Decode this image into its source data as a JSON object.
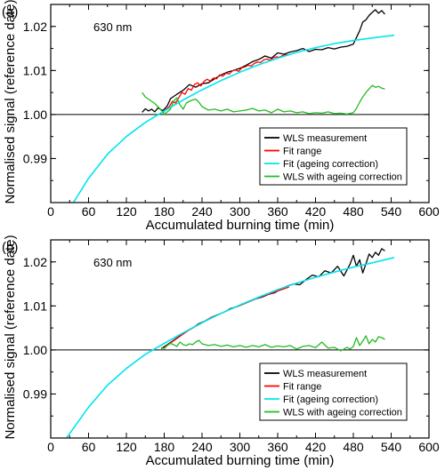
{
  "colors": {
    "measurement": "#000000",
    "fit_range": "#ff0000",
    "fit": "#00e5ee",
    "corrected": "#22bb22",
    "reference": "#000000"
  },
  "chart_data": [
    {
      "type": "line",
      "panel_label": "(a)",
      "annotation": "630 nm",
      "xlabel": "Accumulated burning time (min)",
      "ylabel": "Normalised signal (reference date)",
      "xlim": [
        0,
        600
      ],
      "ylim": [
        0.98,
        1.025
      ],
      "x_ticks": [
        0,
        60,
        120,
        180,
        240,
        300,
        360,
        420,
        480,
        540,
        600
      ],
      "y_ticks": [
        0.99,
        1.0,
        1.01,
        1.02
      ],
      "y_tick_labels": [
        "0.99",
        "1.00",
        "1.01",
        "1.02"
      ],
      "reference_line": 1.0,
      "legend_position": "bottom-right",
      "series": [
        {
          "name": "WLS measurement",
          "color_key": "measurement",
          "x": [
            145,
            150,
            155,
            160,
            165,
            170,
            175,
            178,
            182,
            185,
            190,
            200,
            210,
            220,
            230,
            240,
            250,
            260,
            270,
            280,
            290,
            300,
            310,
            320,
            330,
            340,
            350,
            360,
            370,
            380,
            390,
            400,
            410,
            420,
            430,
            440,
            450,
            460,
            470,
            480,
            485,
            490,
            495,
            500,
            505,
            510,
            515,
            520,
            525,
            530
          ],
          "y": [
            1.0005,
            1.0013,
            1.0008,
            1.0012,
            1.0006,
            1.0015,
            1.0011,
            1.0009,
            1.0015,
            1.002,
            1.0036,
            1.0046,
            1.0055,
            1.0068,
            1.0062,
            1.007,
            1.0072,
            1.0081,
            1.009,
            1.0096,
            1.01,
            1.0105,
            1.0112,
            1.012,
            1.0125,
            1.0133,
            1.0128,
            1.014,
            1.0137,
            1.0142,
            1.0145,
            1.015,
            1.0143,
            1.0148,
            1.0147,
            1.0152,
            1.0149,
            1.0153,
            1.0155,
            1.016,
            1.0175,
            1.019,
            1.021,
            1.0215,
            1.0225,
            1.0232,
            1.0238,
            1.023,
            1.0236,
            1.0228
          ]
        },
        {
          "name": "Fit range",
          "color_key": "fit_range",
          "x": [
            178,
            183,
            188,
            193,
            198,
            203,
            208,
            213,
            218,
            223,
            228,
            233,
            238,
            243,
            248,
            253,
            258,
            263,
            268,
            273,
            278,
            283,
            288,
            293,
            298,
            303,
            308,
            313,
            318,
            323,
            328,
            333,
            338,
            343,
            348,
            353,
            358,
            363,
            368,
            373,
            378
          ],
          "y": [
            1.0003,
            1.0012,
            1.0018,
            1.003,
            1.0026,
            1.0038,
            1.005,
            1.0046,
            1.0059,
            1.0055,
            1.0068,
            1.0072,
            1.0065,
            1.0075,
            1.008,
            1.0076,
            1.0083,
            1.0081,
            1.009,
            1.0087,
            1.0094,
            1.0092,
            1.0099,
            1.0101,
            1.0098,
            1.0106,
            1.0108,
            1.0112,
            1.011,
            1.0116,
            1.0119,
            1.0118,
            1.0124,
            1.0126,
            1.0123,
            1.0129,
            1.0131,
            1.013,
            1.0134,
            1.0136,
            1.0135
          ]
        },
        {
          "name": "Fit (ageing correction)",
          "color_key": "fit",
          "x": [
            36,
            60,
            90,
            120,
            150,
            180,
            210,
            240,
            270,
            300,
            330,
            360,
            390,
            420,
            450,
            480,
            510,
            545
          ],
          "y": [
            0.98,
            0.9855,
            0.991,
            0.995,
            0.9982,
            1.0008,
            1.0033,
            1.0056,
            1.0077,
            1.0096,
            1.0113,
            1.0128,
            1.0141,
            1.0152,
            1.0161,
            1.0168,
            1.0174,
            1.018
          ]
        },
        {
          "name": "WLS with ageing correction",
          "color_key": "corrected",
          "x": [
            145,
            150,
            155,
            160,
            165,
            170,
            175,
            180,
            185,
            190,
            195,
            200,
            205,
            210,
            215,
            220,
            225,
            230,
            235,
            240,
            250,
            260,
            270,
            280,
            290,
            300,
            310,
            320,
            330,
            340,
            350,
            360,
            370,
            380,
            390,
            400,
            410,
            420,
            430,
            440,
            450,
            460,
            470,
            480,
            485,
            490,
            495,
            500,
            505,
            510,
            515,
            520,
            525,
            530
          ],
          "y": [
            1.005,
            1.004,
            1.0035,
            1.003,
            1.0025,
            1.0018,
            1.001,
            1.0,
            1.0006,
            1.0012,
            1.003,
            1.0038,
            1.0022,
            1.0012,
            1.0026,
            1.003,
            1.0033,
            1.0035,
            1.0028,
            1.0018,
            1.001,
            1.0012,
            1.0008,
            1.0012,
            1.0006,
            1.0008,
            1.001,
            1.0014,
            1.0008,
            1.001,
            1.0004,
            1.0012,
            1.0006,
            1.0008,
            1.0004,
            1.0006,
            1.0002,
            1.0004,
            1.0003,
            1.0006,
            1.0002,
            1.0003,
            1.0001,
            1.0004,
            1.0014,
            1.0028,
            1.004,
            1.005,
            1.0058,
            1.0066,
            1.0062,
            1.0064,
            1.006,
            1.0058
          ]
        }
      ]
    },
    {
      "type": "line",
      "panel_label": "(b)",
      "annotation": "630 nm",
      "xlabel": "Accumulated burning time (min)",
      "ylabel": "Normalised signal (reference date)",
      "xlim": [
        0,
        600
      ],
      "ylim": [
        0.98,
        1.025
      ],
      "x_ticks": [
        0,
        60,
        120,
        180,
        240,
        300,
        360,
        420,
        480,
        540,
        600
      ],
      "y_ticks": [
        0.99,
        1.0,
        1.01,
        1.02
      ],
      "y_tick_labels": [
        "0.99",
        "1.00",
        "1.01",
        "1.02"
      ],
      "reference_line": 1.0,
      "legend_position": "bottom-right",
      "series": [
        {
          "name": "WLS measurement",
          "color_key": "measurement",
          "x": [
            175,
            185,
            195,
            205,
            215,
            225,
            235,
            245,
            255,
            265,
            275,
            285,
            295,
            305,
            315,
            325,
            335,
            345,
            355,
            365,
            375,
            385,
            395,
            405,
            415,
            425,
            435,
            445,
            455,
            465,
            475,
            480,
            485,
            490,
            495,
            500,
            505,
            510,
            515,
            520,
            525,
            530
          ],
          "y": [
            1.0003,
            1.0012,
            1.0022,
            1.0032,
            1.0042,
            1.005,
            1.006,
            1.0066,
            1.0074,
            1.008,
            1.0086,
            1.0094,
            1.0098,
            1.0104,
            1.011,
            1.0116,
            1.012,
            1.0126,
            1.013,
            1.0138,
            1.0145,
            1.015,
            1.0148,
            1.016,
            1.017,
            1.0166,
            1.018,
            1.0175,
            1.019,
            1.0168,
            1.0196,
            1.0215,
            1.019,
            1.0205,
            1.0175,
            1.0196,
            1.0218,
            1.021,
            1.0222,
            1.0215,
            1.023,
            1.0225
          ]
        },
        {
          "name": "Fit range",
          "color_key": "fit_range",
          "x": [
            178,
            188,
            198,
            208,
            218,
            228,
            238,
            248,
            258,
            268,
            278,
            288,
            298,
            308,
            318,
            328,
            338,
            348,
            358,
            368,
            378
          ],
          "y": [
            1.0004,
            1.0014,
            1.0024,
            1.0034,
            1.0044,
            1.0052,
            1.006,
            1.0068,
            1.0076,
            1.0082,
            1.0088,
            1.0094,
            1.01,
            1.0106,
            1.0112,
            1.0118,
            1.0123,
            1.0128,
            1.0133,
            1.0138,
            1.0143
          ]
        },
        {
          "name": "Fit (ageing correction)",
          "color_key": "fit",
          "x": [
            25,
            60,
            90,
            120,
            150,
            180,
            210,
            240,
            270,
            300,
            330,
            360,
            390,
            420,
            450,
            480,
            510,
            545
          ],
          "y": [
            0.98,
            0.987,
            0.992,
            0.9958,
            0.999,
            1.0015,
            1.0039,
            1.0062,
            1.0083,
            1.0102,
            1.012,
            1.0137,
            1.0152,
            1.0165,
            1.0177,
            1.0188,
            1.0198,
            1.021
          ]
        },
        {
          "name": "WLS with ageing correction",
          "color_key": "corrected",
          "x": [
            175,
            180,
            185,
            190,
            195,
            200,
            205,
            210,
            215,
            220,
            225,
            230,
            235,
            240,
            250,
            260,
            270,
            280,
            290,
            300,
            310,
            320,
            330,
            340,
            350,
            360,
            370,
            380,
            390,
            400,
            410,
            420,
            430,
            440,
            450,
            460,
            470,
            475,
            480,
            485,
            490,
            495,
            500,
            505,
            510,
            515,
            520,
            525,
            530
          ],
          "y": [
            1.0005,
            1.0003,
            1.001,
            1.0015,
            1.0012,
            1.0008,
            1.0018,
            1.0012,
            1.001,
            1.0014,
            1.0012,
            1.0018,
            1.0022,
            1.0014,
            1.001,
            1.0012,
            1.0008,
            1.0011,
            1.0007,
            1.001,
            1.0006,
            1.001,
            1.0007,
            1.0012,
            1.0006,
            1.0009,
            1.0007,
            1.001,
            1.0002,
            1.0008,
            1.001,
            1.0005,
            1.0018,
            1.0004,
            1.0006,
            0.9998,
            1.0006,
            1.0002,
            1.0008,
            1.0028,
            1.001,
            1.002,
            1.0032,
            1.0014,
            1.0024,
            1.0018,
            1.003,
            1.0028,
            1.0024
          ]
        }
      ]
    }
  ]
}
